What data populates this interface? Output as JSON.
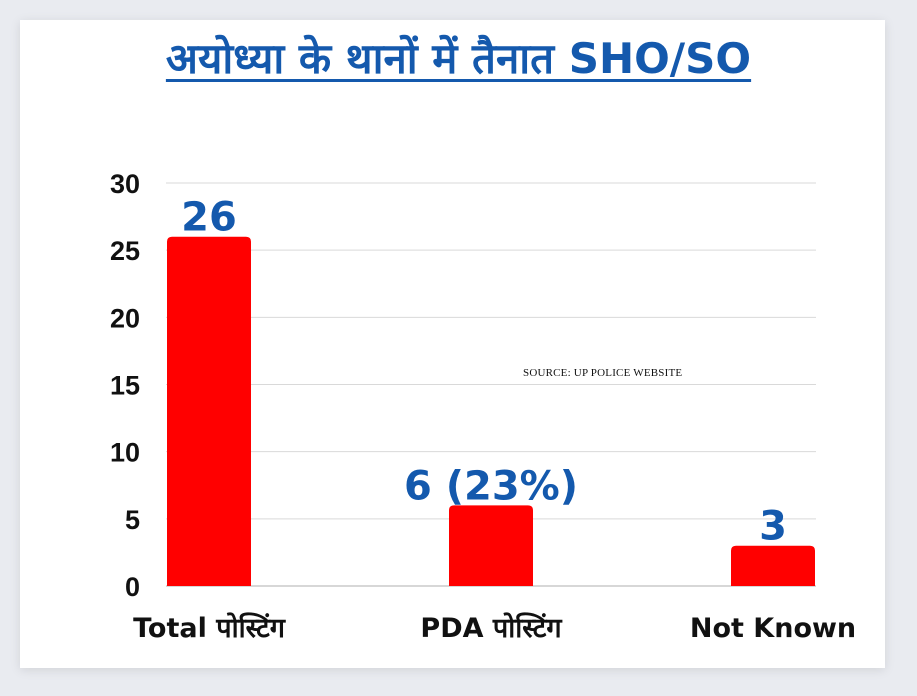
{
  "chart_data": {
    "type": "bar",
    "title": "अयोध्या के थानों में तैनात SHO/SO",
    "categories": [
      "Total पोस्टिंग",
      "PDA पोस्टिंग",
      "Not Known"
    ],
    "values": [
      26,
      6,
      3
    ],
    "data_labels": [
      "26",
      "6 (23%)",
      "3"
    ],
    "yticks": [
      "0",
      "5",
      "10",
      "15",
      "20",
      "25",
      "30"
    ],
    "ylim": [
      0,
      30
    ],
    "grid": true,
    "bar_color": "#ff0000",
    "label_color": "#1459ad",
    "source": "SOURCE: UP POLICE WEBSITE"
  }
}
